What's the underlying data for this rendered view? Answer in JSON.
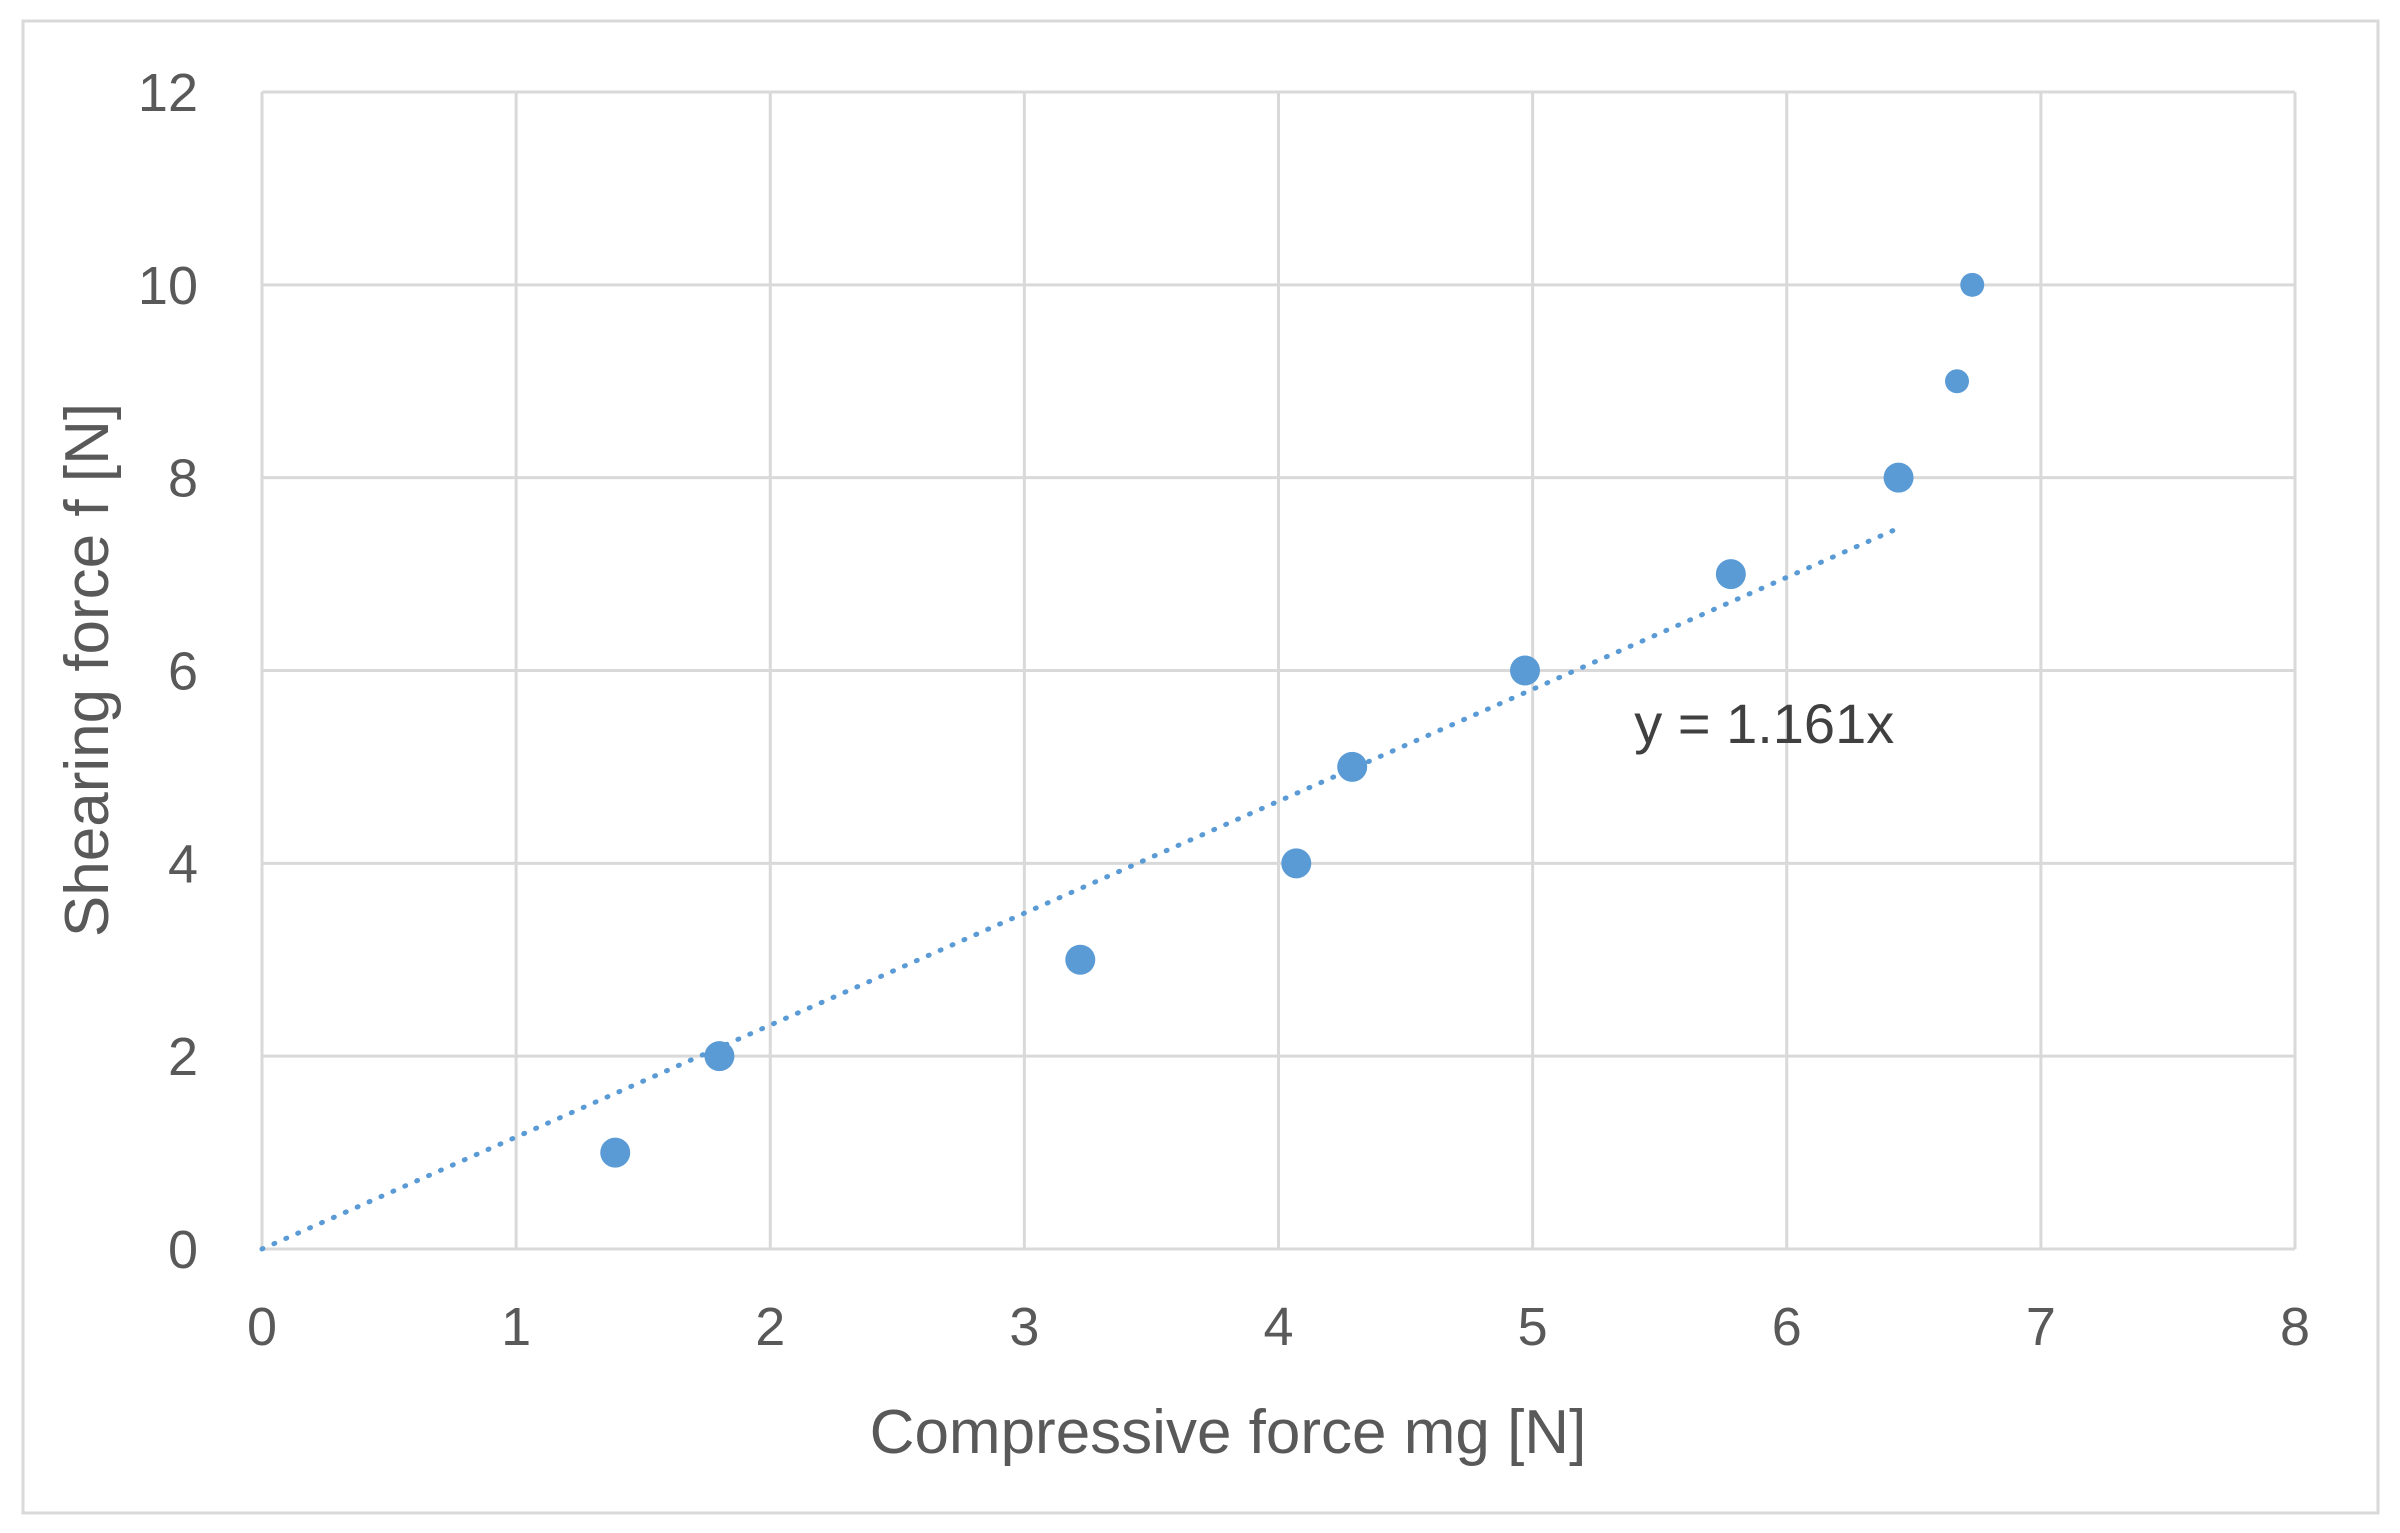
{
  "chart_data": {
    "type": "scatter",
    "title": "",
    "xlabel": "Compressive force mg [N]",
    "ylabel": "Shearing force f [N]",
    "xlim": [
      0,
      8
    ],
    "ylim": [
      0,
      12
    ],
    "x_ticks": [
      "0",
      "1",
      "2",
      "3",
      "4",
      "5",
      "6",
      "7",
      "8"
    ],
    "y_ticks": [
      "0",
      "2",
      "4",
      "6",
      "8",
      "10",
      "12"
    ],
    "grid": true,
    "legend": "none",
    "series": [
      {
        "x": [
          1.39,
          1.8,
          3.22,
          4.07,
          4.29,
          4.97,
          5.78,
          6.44,
          6.67,
          6.73
        ],
        "y": [
          1,
          2,
          3,
          4,
          5,
          6,
          7,
          8,
          9,
          10
        ],
        "color": "#5B9BD5"
      }
    ],
    "trendline": {
      "type": "linear through origin",
      "slope": 1.161,
      "x_range": [
        0,
        6.44
      ],
      "style": "dotted",
      "color": "#5B9BD5",
      "equation_label": "y = 1.161x"
    }
  }
}
